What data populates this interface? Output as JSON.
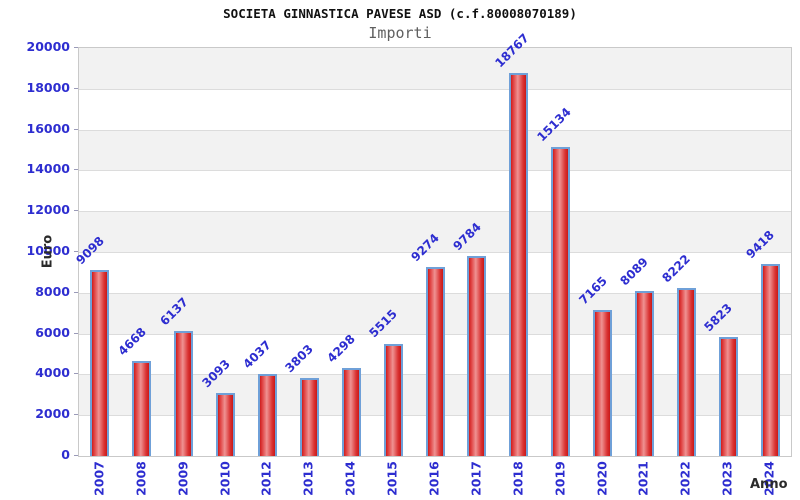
{
  "header": {
    "title": "SOCIETA GINNASTICA PAVESE ASD (c.f.80008070189)",
    "subtitle": "Importi"
  },
  "chart_data": {
    "type": "bar",
    "title": "SOCIETA GINNASTICA PAVESE ASD (c.f.80008070189)",
    "subtitle": "Importi",
    "xlabel": "Anno",
    "ylabel": "Euro",
    "categories": [
      "2007",
      "2008",
      "2009",
      "2010",
      "2012",
      "2013",
      "2014",
      "2015",
      "2016",
      "2017",
      "2018",
      "2019",
      "2020",
      "2021",
      "2022",
      "2023",
      "2024"
    ],
    "values": [
      9098,
      4668,
      6137,
      3093,
      4037,
      3803,
      4298,
      5515,
      9274,
      9784,
      18767,
      15134,
      7165,
      8089,
      8222,
      5823,
      9418
    ],
    "ylim": [
      0,
      20000
    ],
    "ytick_step": 2000,
    "grid": "horizontal-bands-alternating",
    "legend": "none",
    "colors": {
      "bar_fill_dark": "#cf1d1d",
      "bar_fill_light": "#ef9292",
      "bar_border": "#6fa0d8",
      "value_label": "#2d2dd0",
      "tick_label": "#2d2dd0",
      "band_gray": "#f2f2f2",
      "band_white": "#ffffff",
      "gridline": "#dcdcdc",
      "axis_title": "#2a2a2a",
      "title": "#111111",
      "subtitle": "#606060"
    }
  }
}
